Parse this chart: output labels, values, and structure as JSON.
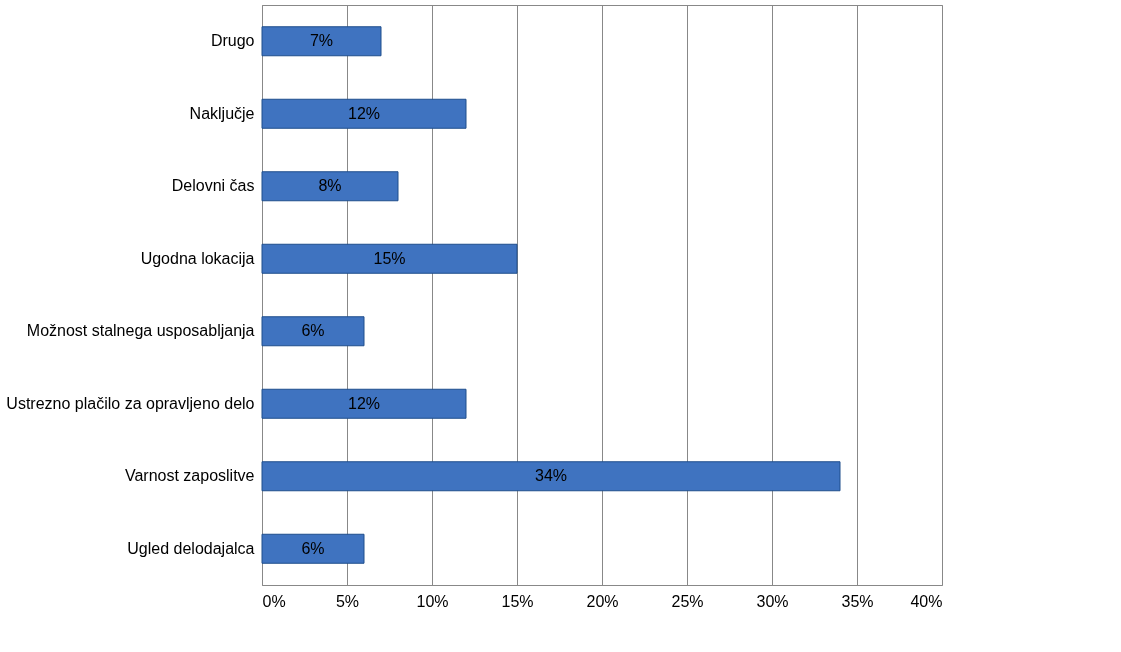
{
  "chart_data": {
    "type": "bar",
    "orientation": "horizontal",
    "categories": [
      "Drugo",
      "Naključje",
      "Delovni čas",
      "Ugodna lokacija",
      "Možnost stalnega usposabljanja",
      "Ustrezno plačilo za opravljeno delo",
      "Varnost zaposlitve",
      "Ugled delodajalca"
    ],
    "values": [
      7,
      12,
      8,
      15,
      6,
      12,
      34,
      6
    ],
    "value_labels": [
      "7%",
      "12%",
      "8%",
      "15%",
      "6%",
      "12%",
      "34%",
      "6%"
    ],
    "color": "#3f73c0",
    "xlim": [
      0,
      40
    ],
    "xticks": [
      {
        "value": 0,
        "label": "0%"
      },
      {
        "value": 5,
        "label": "5%"
      },
      {
        "value": 10,
        "label": "10%"
      },
      {
        "value": 15,
        "label": "15%"
      },
      {
        "value": 20,
        "label": "20%"
      },
      {
        "value": 25,
        "label": "25%"
      },
      {
        "value": 30,
        "label": "30%"
      },
      {
        "value": 35,
        "label": "35%"
      },
      {
        "value": 40,
        "label": "40%"
      }
    ],
    "grid": "x"
  }
}
